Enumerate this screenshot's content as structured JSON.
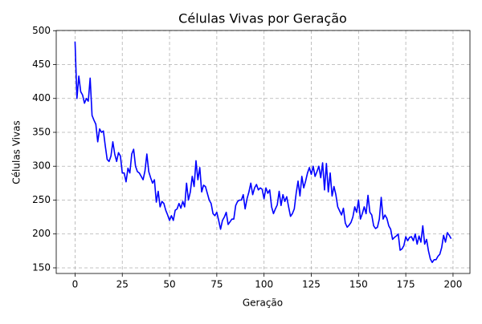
{
  "chart_data": {
    "type": "line",
    "title": "Células Vivas por Geração",
    "xlabel": "Geração",
    "ylabel": "Células Vivas",
    "color": "#0000ff",
    "grid": true,
    "xlim": [
      -9.95,
      208.95
    ],
    "ylim": [
      141.7,
      500.3
    ],
    "xticks": [
      0,
      25,
      50,
      75,
      100,
      125,
      150,
      175,
      200
    ],
    "yticks": [
      150,
      200,
      250,
      300,
      350,
      400,
      450,
      500
    ],
    "x": [
      0,
      1,
      2,
      3,
      4,
      5,
      6,
      7,
      8,
      9,
      10,
      11,
      12,
      13,
      14,
      15,
      16,
      17,
      18,
      19,
      20,
      21,
      22,
      23,
      24,
      25,
      26,
      27,
      28,
      29,
      30,
      31,
      32,
      33,
      34,
      35,
      36,
      37,
      38,
      39,
      40,
      41,
      42,
      43,
      44,
      45,
      46,
      47,
      48,
      49,
      50,
      51,
      52,
      53,
      54,
      55,
      56,
      57,
      58,
      59,
      60,
      61,
      62,
      63,
      64,
      65,
      66,
      67,
      68,
      69,
      70,
      71,
      72,
      73,
      74,
      75,
      76,
      77,
      78,
      79,
      80,
      81,
      82,
      83,
      84,
      85,
      86,
      87,
      88,
      89,
      90,
      91,
      92,
      93,
      94,
      95,
      96,
      97,
      98,
      99,
      100,
      101,
      102,
      103,
      104,
      105,
      106,
      107,
      108,
      109,
      110,
      111,
      112,
      113,
      114,
      115,
      116,
      117,
      118,
      119,
      120,
      121,
      122,
      123,
      124,
      125,
      126,
      127,
      128,
      129,
      130,
      131,
      132,
      133,
      134,
      135,
      136,
      137,
      138,
      139,
      140,
      141,
      142,
      143,
      144,
      145,
      146,
      147,
      148,
      149,
      150,
      151,
      152,
      153,
      154,
      155,
      156,
      157,
      158,
      159,
      160,
      161,
      162,
      163,
      164,
      165,
      166,
      167,
      168,
      169,
      170,
      171,
      172,
      173,
      174,
      175,
      176,
      177,
      178,
      179,
      180,
      181,
      182,
      183,
      184,
      185,
      186,
      187,
      188,
      189,
      190,
      191,
      192,
      193,
      194,
      195,
      196,
      197,
      198,
      199
    ],
    "values": [
      484,
      400,
      433,
      410,
      405,
      393,
      400,
      396,
      430,
      375,
      368,
      362,
      336,
      355,
      350,
      352,
      330,
      310,
      307,
      315,
      336,
      318,
      307,
      320,
      315,
      290,
      290,
      277,
      297,
      290,
      318,
      325,
      300,
      292,
      290,
      285,
      280,
      293,
      318,
      292,
      283,
      275,
      280,
      247,
      263,
      240,
      248,
      245,
      235,
      228,
      220,
      227,
      220,
      235,
      237,
      245,
      238,
      248,
      240,
      275,
      250,
      262,
      285,
      270,
      308,
      280,
      298,
      262,
      272,
      270,
      260,
      250,
      245,
      230,
      227,
      232,
      220,
      207,
      220,
      225,
      232,
      214,
      218,
      222,
      222,
      242,
      248,
      250,
      250,
      258,
      237,
      252,
      262,
      275,
      258,
      268,
      273,
      265,
      268,
      266,
      252,
      268,
      260,
      265,
      240,
      230,
      237,
      243,
      263,
      242,
      258,
      248,
      255,
      240,
      226,
      230,
      237,
      260,
      278,
      256,
      285,
      268,
      278,
      290,
      298,
      288,
      300,
      285,
      292,
      300,
      283,
      305,
      265,
      304,
      262,
      290,
      256,
      270,
      258,
      240,
      234,
      228,
      238,
      216,
      210,
      213,
      217,
      225,
      240,
      232,
      250,
      222,
      230,
      240,
      230,
      257,
      232,
      228,
      212,
      208,
      210,
      222,
      254,
      222,
      228,
      223,
      212,
      207,
      192,
      195,
      197,
      200,
      176,
      178,
      183,
      196,
      190,
      195,
      196,
      190,
      200,
      185,
      197,
      188,
      212,
      185,
      192,
      175,
      163,
      158,
      162,
      162,
      167,
      170,
      180,
      198,
      188,
      202,
      198,
      193
    ]
  }
}
